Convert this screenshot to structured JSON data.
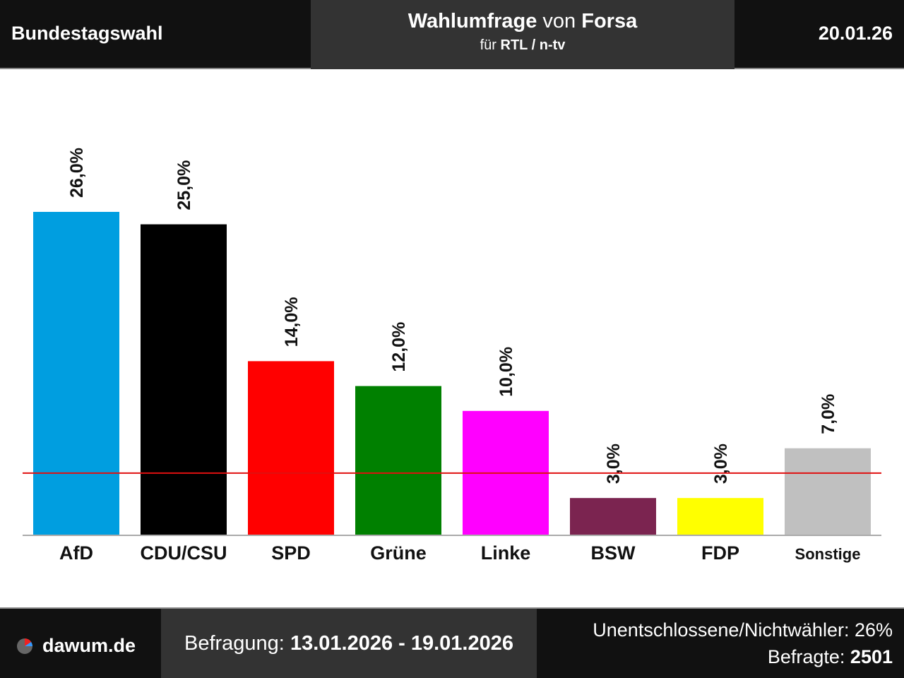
{
  "header": {
    "left": "Bundestagswahl",
    "title_bold_1": "Wahlumfrage",
    "title_normal": "von",
    "title_bold_2": "Forsa",
    "subtitle_normal": "für",
    "subtitle_bold": "RTL / n-tv",
    "date": "20.01.26"
  },
  "chart_data": {
    "type": "bar",
    "categories": [
      "AfD",
      "CDU/CSU",
      "SPD",
      "Grüne",
      "Linke",
      "BSW",
      "FDP",
      "Sonstige"
    ],
    "values": [
      26,
      25,
      14,
      12,
      10,
      3,
      3,
      7
    ],
    "value_labels": [
      "26,0%",
      "25,0%",
      "14,0%",
      "12,0%",
      "10,0%",
      "3,0%",
      "3,0%",
      "7,0%"
    ],
    "colors": [
      "#009ee0",
      "#000000",
      "#ff0000",
      "#008000",
      "#ff00ff",
      "#7b2450",
      "#ffff00",
      "#c0c0c0"
    ],
    "ylim": [
      0,
      30
    ],
    "threshold": 5,
    "threshold_color": "#e01010"
  },
  "footer": {
    "site": "dawum.de",
    "period_label": "Befragung:",
    "period": "13.01.2026 - 19.01.2026",
    "undecided": "Unentschlossene/Nichtwähler: 26%",
    "respondents_label": "Befragte:",
    "respondents": "2501"
  }
}
